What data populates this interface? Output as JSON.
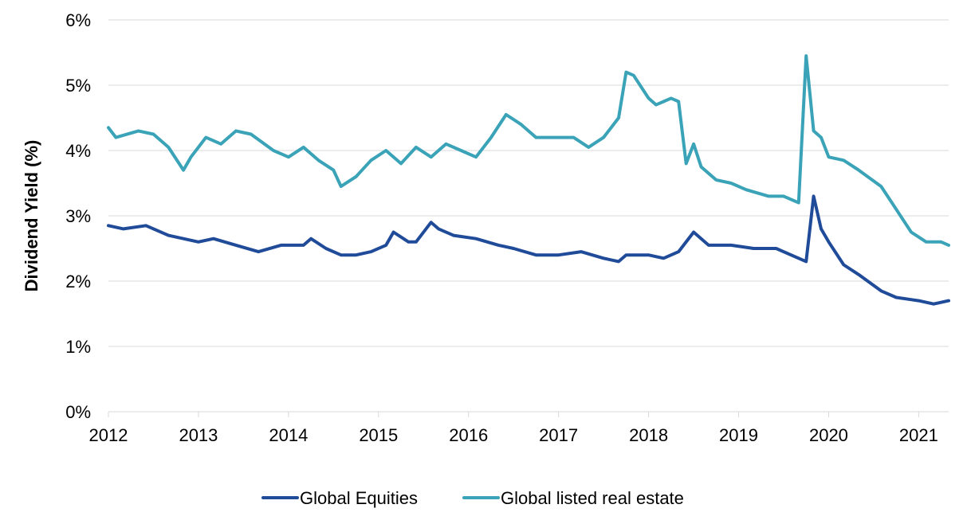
{
  "chart_data": {
    "type": "line",
    "title": "",
    "xlabel": "",
    "ylabel": "Dividend Yield (%)",
    "ylim": [
      0,
      6
    ],
    "xlim": [
      "2012-01-01",
      "2021-05-01"
    ],
    "y_ticks": [
      "0%",
      "1%",
      "2%",
      "3%",
      "4%",
      "5%",
      "6%"
    ],
    "y_tick_values": [
      0,
      1,
      2,
      3,
      4,
      5,
      6
    ],
    "x_ticks": [
      "2012",
      "2013",
      "2014",
      "2015",
      "2016",
      "2017",
      "2018",
      "2019",
      "2020",
      "2021"
    ],
    "grid": "horizontal",
    "legend_position": "bottom",
    "colors": {
      "Global Equities": "#1f4b99",
      "Global listed real estate": "#3aa3b8",
      "grid": "#d9d9d9"
    },
    "series": [
      {
        "name": "Global Equities",
        "x": [
          "2012-01",
          "2012-03",
          "2012-06",
          "2012-09",
          "2012-11",
          "2013-01",
          "2013-03",
          "2013-06",
          "2013-09",
          "2013-12",
          "2014-03",
          "2014-04",
          "2014-06",
          "2014-08",
          "2014-10",
          "2014-12",
          "2015-02",
          "2015-03",
          "2015-05",
          "2015-06",
          "2015-08",
          "2015-09",
          "2015-11",
          "2016-02",
          "2016-05",
          "2016-07",
          "2016-10",
          "2017-01",
          "2017-04",
          "2017-07",
          "2017-09",
          "2017-10",
          "2018-01",
          "2018-03",
          "2018-05",
          "2018-07",
          "2018-09",
          "2018-12",
          "2019-03",
          "2019-06",
          "2019-09",
          "2019-10",
          "2019-11",
          "2019-12",
          "2020-01",
          "2020-03",
          "2020-05",
          "2020-08",
          "2020-10",
          "2021-01",
          "2021-03",
          "2021-05"
        ],
        "values": [
          2.85,
          2.8,
          2.85,
          2.7,
          2.65,
          2.6,
          2.65,
          2.55,
          2.45,
          2.55,
          2.55,
          2.65,
          2.5,
          2.4,
          2.4,
          2.45,
          2.55,
          2.75,
          2.6,
          2.6,
          2.9,
          2.8,
          2.7,
          2.65,
          2.55,
          2.5,
          2.4,
          2.4,
          2.45,
          2.35,
          2.3,
          2.4,
          2.4,
          2.35,
          2.45,
          2.75,
          2.55,
          2.55,
          2.5,
          2.5,
          2.35,
          2.3,
          3.3,
          2.8,
          2.6,
          2.25,
          2.1,
          1.85,
          1.75,
          1.7,
          1.65,
          1.7
        ]
      },
      {
        "name": "Global listed real estate",
        "x": [
          "2012-01",
          "2012-02",
          "2012-05",
          "2012-07",
          "2012-09",
          "2012-11",
          "2012-12",
          "2013-02",
          "2013-04",
          "2013-06",
          "2013-08",
          "2013-11",
          "2014-01",
          "2014-03",
          "2014-05",
          "2014-07",
          "2014-08",
          "2014-10",
          "2014-12",
          "2015-02",
          "2015-04",
          "2015-06",
          "2015-08",
          "2015-10",
          "2015-12",
          "2016-02",
          "2016-04",
          "2016-06",
          "2016-08",
          "2016-10",
          "2016-12",
          "2017-03",
          "2017-05",
          "2017-07",
          "2017-09",
          "2017-10",
          "2017-11",
          "2018-01",
          "2018-02",
          "2018-03",
          "2018-04",
          "2018-05",
          "2018-06",
          "2018-07",
          "2018-08",
          "2018-10",
          "2018-12",
          "2019-02",
          "2019-05",
          "2019-07",
          "2019-09",
          "2019-10",
          "2019-11",
          "2019-12",
          "2020-01",
          "2020-03",
          "2020-05",
          "2020-08",
          "2020-10",
          "2020-12",
          "2021-02",
          "2021-04",
          "2021-05"
        ],
        "values": [
          4.35,
          4.2,
          4.3,
          4.25,
          4.05,
          3.7,
          3.9,
          4.2,
          4.1,
          4.3,
          4.25,
          4.0,
          3.9,
          4.05,
          3.85,
          3.7,
          3.45,
          3.6,
          3.85,
          4.0,
          3.8,
          4.05,
          3.9,
          4.1,
          4.0,
          3.9,
          4.2,
          4.55,
          4.4,
          4.2,
          4.2,
          4.2,
          4.05,
          4.2,
          4.5,
          5.2,
          5.15,
          4.8,
          4.7,
          4.75,
          4.8,
          4.75,
          3.8,
          4.1,
          3.75,
          3.55,
          3.5,
          3.4,
          3.3,
          3.3,
          3.2,
          5.45,
          4.3,
          4.2,
          3.9,
          3.85,
          3.7,
          3.45,
          3.1,
          2.75,
          2.6,
          2.6,
          2.55
        ]
      }
    ]
  }
}
